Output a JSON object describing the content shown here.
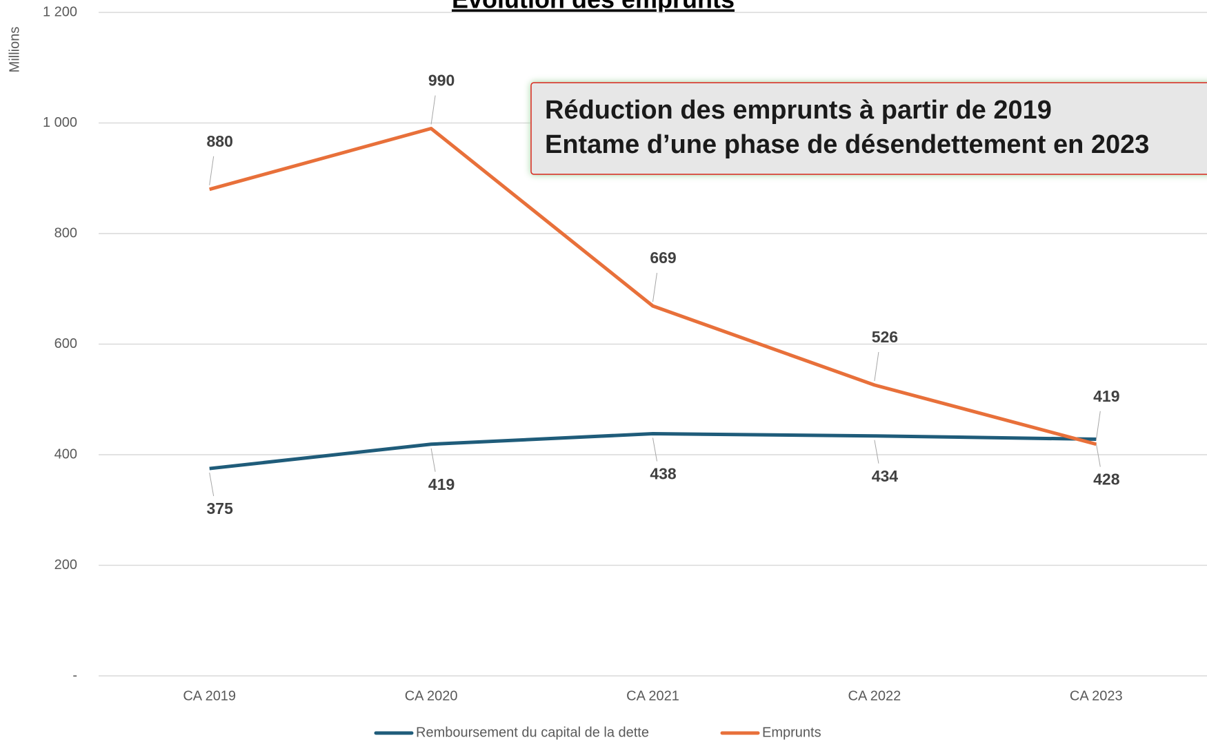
{
  "chart_data": {
    "type": "line",
    "title": "Évolution des emprunts",
    "y_axis_label": "Millions",
    "annotation": [
      "Réduction des emprunts à partir de 2019",
      "Entame d’une phase de désendettement en 2023"
    ],
    "categories": [
      "CA 2019",
      "CA 2020",
      "CA 2021",
      "CA 2022",
      "CA 2023"
    ],
    "series": [
      {
        "name": "Remboursement du capital de la dette",
        "color": "#1f5c7a",
        "values": [
          375,
          419,
          438,
          434,
          428
        ]
      },
      {
        "name": "Emprunts",
        "color": "#e8703a",
        "values": [
          880,
          990,
          669,
          526,
          419
        ]
      }
    ],
    "ylim": [
      0,
      1200
    ],
    "yticks": [
      {
        "value": 0,
        "label": "-"
      },
      200,
      400,
      600,
      800,
      {
        "value": 1000,
        "label": "1 000"
      },
      {
        "value": 1200,
        "label": "1 200"
      }
    ],
    "grid": true,
    "legend": "bottom"
  }
}
